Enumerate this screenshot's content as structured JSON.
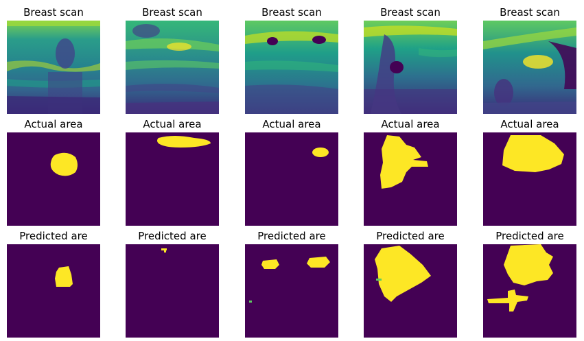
{
  "colors": {
    "background": "#440154",
    "mask": "#fde725",
    "scan_dark": "#3b1d6e",
    "scan_mid": "#21918c",
    "scan_light": "#5ec962",
    "scan_bright": "#fde725"
  },
  "columns": [
    {
      "scan_title": "Breast scan",
      "actual_title": "Actual area",
      "predicted_title": "Predicted are"
    },
    {
      "scan_title": "Breast scan",
      "actual_title": "Actual area",
      "predicted_title": "Predicted are"
    },
    {
      "scan_title": "Breast scan",
      "actual_title": "Actual area",
      "predicted_title": "Predicted are"
    },
    {
      "scan_title": "Breast scan",
      "actual_title": "Actual area",
      "predicted_title": "Predicted are"
    },
    {
      "scan_title": "Breast scan",
      "actual_title": "Actual area",
      "predicted_title": "Predicted are"
    }
  ]
}
